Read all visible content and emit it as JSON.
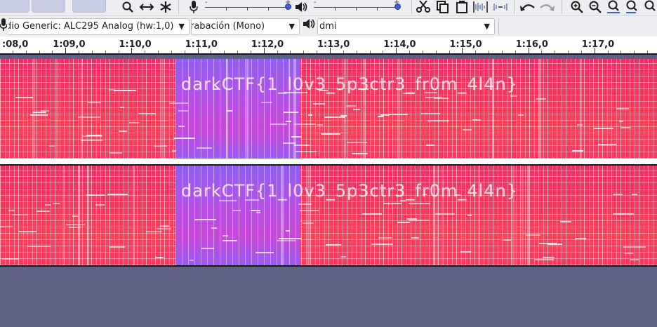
{
  "toolbar": {
    "tools": [
      {
        "icon": "zoom-icon",
        "glyph": "🔍"
      },
      {
        "icon": "time-shift-icon",
        "glyph": "↔"
      },
      {
        "icon": "multi-tool-icon",
        "glyph": "✱"
      }
    ],
    "record_meter_icon": "microphone-icon",
    "play_meter_icon": "speaker-icon",
    "edit_tools": [
      "cut-icon",
      "copy-icon",
      "paste-icon",
      "trim-icon",
      "silence-icon"
    ],
    "undo_redo": [
      "undo-icon",
      "redo-icon"
    ],
    "zoom_tools": [
      "zoom-in-icon",
      "zoom-out-icon",
      "fit-selection-icon",
      "fit-project-icon",
      "zoom-toggle-icon"
    ],
    "slider_minus": "-",
    "slider_plus": "+"
  },
  "devices": {
    "input_device": "dio Generic: ALC295 Analog (hw:1,0)",
    "input_channels": "rabación (Mono)",
    "output_device": "dmi"
  },
  "ruler": {
    "labels": [
      ":08,0",
      "1:09,0",
      "1:10,0",
      "1:11,0",
      "1:12,0",
      "1:13,0",
      "1:14,0",
      "1:15,0",
      "1:16,0",
      "1:17,0"
    ]
  },
  "tracks": [
    {
      "channel": "top",
      "overlay_text": "darkCTF{1_l0v3_5p3ctr3_fr0m_4l4n}"
    },
    {
      "channel": "bottom",
      "overlay_text": "darkCTF{1_l0v3_5p3ctr3_fr0m_4l4n}"
    }
  ],
  "colors": {
    "spectrogram_main": "#f0306a",
    "spectrogram_band": "#b450e8",
    "background": "#5f6182",
    "slider_knob": "#3c5fd4"
  }
}
